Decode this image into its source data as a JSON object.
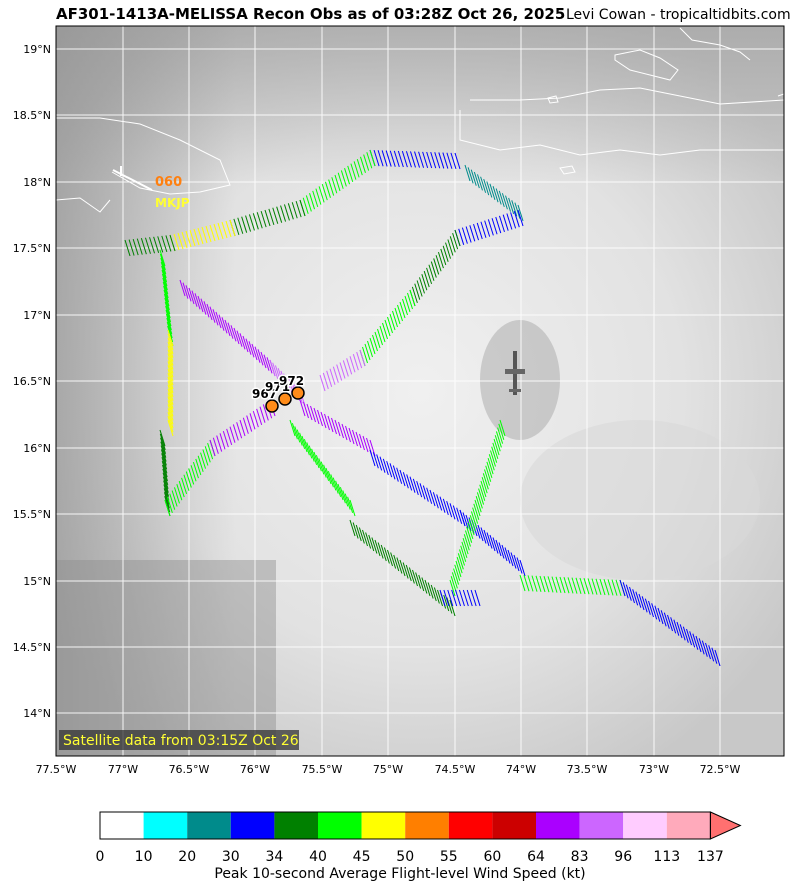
{
  "header": {
    "title": "AF301-1413A-MELISSA Recon Obs as of 03:28Z Oct 26, 2025",
    "credit": "Levi Cowan - tropicaltidbits.com"
  },
  "axes": {
    "lon_ticks": [
      "77.5°W",
      "77°W",
      "76.5°W",
      "76°W",
      "75.5°W",
      "75°W",
      "74.5°W",
      "74°W",
      "73.5°W",
      "73°W",
      "72.5°W"
    ],
    "lat_ticks": [
      "19°N",
      "18.5°N",
      "18°N",
      "17.5°N",
      "17°N",
      "16.5°N",
      "16°N",
      "15.5°N",
      "15°N",
      "14.5°N",
      "14°N"
    ]
  },
  "map": {
    "satellite_note": "Satellite data from 03:15Z Oct 26",
    "station": {
      "id": "MKJP",
      "wind_value": "060",
      "wind_color": "#ff7f0e",
      "id_color": "#ffff33"
    },
    "pressure_labels": [
      "967",
      "971",
      "972"
    ],
    "center_marker_color": "#ff8c1a"
  },
  "colorbar": {
    "label": "Peak 10-second Average Flight-level Wind Speed (kt)",
    "ticks": [
      "0",
      "10",
      "20",
      "30",
      "34",
      "40",
      "45",
      "50",
      "55",
      "60",
      "64",
      "83",
      "96",
      "113",
      "137"
    ],
    "colors": [
      "#ffffff",
      "#00ffff",
      "#008b8b",
      "#0000ff",
      "#008000",
      "#00ff00",
      "#ffff00",
      "#ff7f00",
      "#ff0000",
      "#cc0000",
      "#aa00ff",
      "#cc66ff",
      "#ffccff",
      "#ffaabb"
    ],
    "extend_color": "#ff7070"
  }
}
